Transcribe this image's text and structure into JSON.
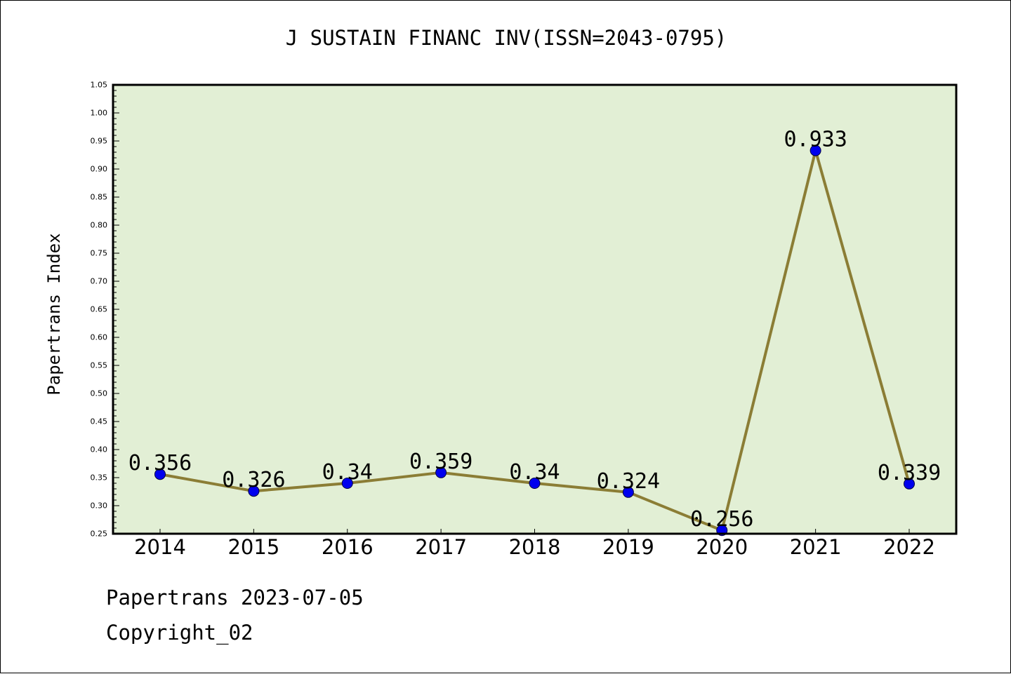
{
  "chart_data": {
    "type": "line",
    "title": "J SUSTAIN FINANC INV(ISSN=2043-0795)",
    "xlabel": "",
    "ylabel": "Papertrans Index",
    "categories": [
      "2014",
      "2015",
      "2016",
      "2017",
      "2018",
      "2019",
      "2020",
      "2021",
      "2022"
    ],
    "series": [
      {
        "values": [
          0.356,
          0.326,
          0.34,
          0.359,
          0.34,
          0.324,
          0.256,
          0.933,
          0.339
        ],
        "labels": [
          "0.356",
          "0.326",
          "0.34",
          "0.359",
          "0.34",
          "0.324",
          "0.256",
          "0.933",
          "0.339"
        ],
        "line_color": "#8b7d35",
        "marker_color": "#0000ee"
      }
    ],
    "ylim": [
      0.25,
      1.05
    ],
    "yticks": [
      "0.25",
      "0.30",
      "0.35",
      "0.40",
      "0.45",
      "0.50",
      "0.55",
      "0.60",
      "0.65",
      "0.70",
      "0.75",
      "0.80",
      "0.85",
      "0.90",
      "0.95",
      "1.00",
      "1.05"
    ],
    "grid": false,
    "plot_background": "#e2efd5"
  },
  "footer": {
    "line1": "Papertrans 2023-07-05",
    "line2": "Copyright_02"
  }
}
